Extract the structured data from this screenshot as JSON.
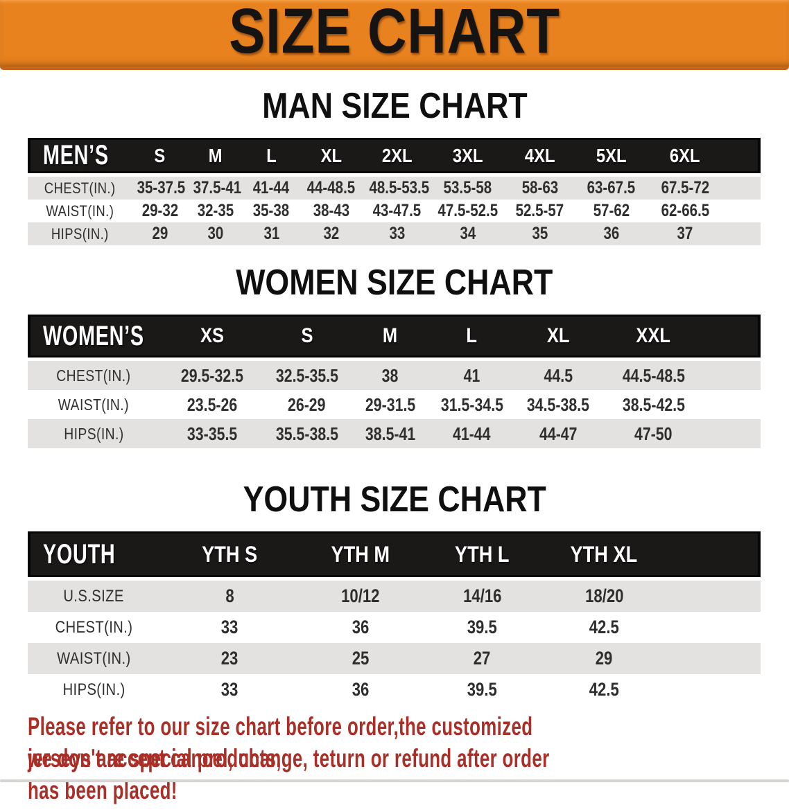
{
  "banner": {
    "title": "SIZE CHART"
  },
  "sections": [
    {
      "title": "MAN SIZE CHART",
      "table": {
        "header": [
          "MEN’S",
          "S",
          "M",
          "L",
          "XL",
          "2XL",
          "3XL",
          "4XL",
          "5XL",
          "6XL"
        ],
        "rows": [
          {
            "label": "CHEST(IN.)",
            "values": [
              "35-37.5",
              "37.5-41",
              "41-44",
              "44-48.5",
              "48.5-53.5",
              "53.5-58",
              "58-63",
              "63-67.5",
              "67.5-72"
            ]
          },
          {
            "label": "WAIST(IN.)",
            "values": [
              "29-32",
              "32-35",
              "35-38",
              "38-43",
              "43-47.5",
              "47.5-52.5",
              "52.5-57",
              "57-62",
              "62-66.5"
            ]
          },
          {
            "label": "HIPS(IN.)",
            "values": [
              "29",
              "30",
              "31",
              "32",
              "33",
              "34",
              "35",
              "36",
              "37"
            ]
          }
        ]
      }
    },
    {
      "title": "WOMEN SIZE CHART",
      "table": {
        "header": [
          "WOMEN’S",
          "XS",
          "S",
          "M",
          "L",
          "XL",
          "XXL"
        ],
        "rows": [
          {
            "label": "CHEST(IN.)",
            "values": [
              "29.5-32.5",
              "32.5-35.5",
              "38",
              "41",
              "44.5",
              "44.5-48.5"
            ]
          },
          {
            "label": "WAIST(IN.)",
            "values": [
              "23.5-26",
              "26-29",
              "29-31.5",
              "31.5-34.5",
              "34.5-38.5",
              "38.5-42.5"
            ]
          },
          {
            "label": "HIPS(IN.)",
            "values": [
              "33-35.5",
              "35.5-38.5",
              "38.5-41",
              "41-44",
              "44-47",
              "47-50"
            ]
          }
        ]
      }
    },
    {
      "title": "YOUTH SIZE CHART",
      "table": {
        "header": [
          "YOUTH",
          "YTH S",
          "YTH M",
          "YTH L",
          "YTH XL"
        ],
        "rows": [
          {
            "label": "U.S.SIZE",
            "values": [
              "8",
              "10/12",
              "14/16",
              "18/20"
            ]
          },
          {
            "label": "CHEST(IN.)",
            "values": [
              "33",
              "36",
              "39.5",
              "42.5"
            ]
          },
          {
            "label": "WAIST(IN.)",
            "values": [
              "23",
              "25",
              "27",
              "29"
            ]
          },
          {
            "label": "HIPS(IN.)",
            "values": [
              "33",
              "36",
              "39.5",
              "42.5"
            ]
          }
        ]
      }
    }
  ],
  "footer": {
    "line1": "Please refer to our size chart before order,the customized jerseys are special products,",
    "line2": "we don't accept cancel, change, teturn or refund after order has been placed!"
  },
  "colors": {
    "banner_bg": "#e8821e",
    "banner_edge": "#c4661c",
    "header_bar_bg": "#1b1818",
    "row_gray": "#e3e2e0",
    "row_white": "#ffffff",
    "text_ink": "#2e2e2e",
    "footer_red": "#a93028",
    "bottom_divider": "#d6d4d1"
  }
}
